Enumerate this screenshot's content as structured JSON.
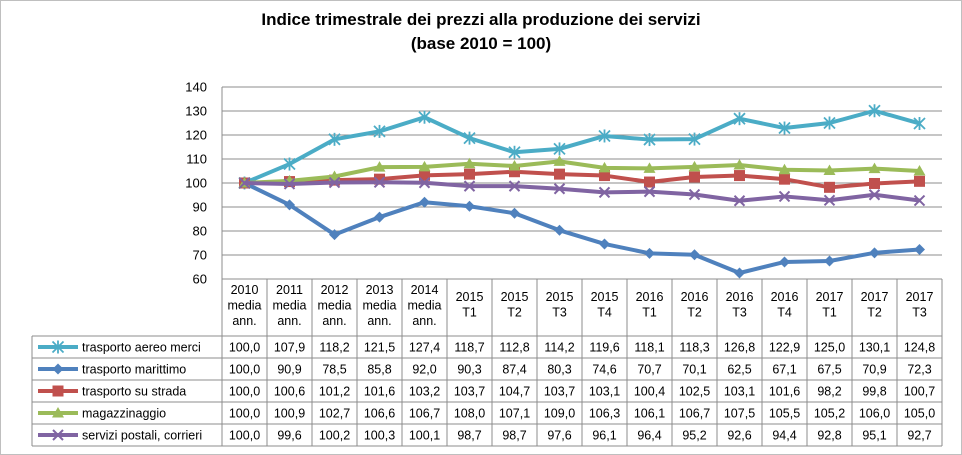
{
  "chart_data": {
    "type": "line",
    "title": "Indice trimestrale dei prezzi alla produzione dei servizi",
    "subtitle": "(base 2010 = 100)",
    "xlabel": "",
    "ylabel": "",
    "ylim": [
      60,
      140
    ],
    "yticks": [
      "60",
      "70",
      "80",
      "90",
      "100",
      "110",
      "120",
      "130",
      "140"
    ],
    "grid": true,
    "legend": "table-bottom",
    "categories": [
      [
        "2010",
        "media",
        "ann."
      ],
      [
        "2011",
        "media",
        "ann."
      ],
      [
        "2012",
        "media",
        "ann."
      ],
      [
        "2013",
        "media",
        "ann."
      ],
      [
        "2014",
        "media",
        "ann."
      ],
      [
        "2015",
        "T1"
      ],
      [
        "2015",
        "T2"
      ],
      [
        "2015",
        "T3"
      ],
      [
        "2015",
        "T4"
      ],
      [
        "2016",
        "T1"
      ],
      [
        "2016",
        "T2"
      ],
      [
        "2016",
        "T3"
      ],
      [
        "2016",
        "T4"
      ],
      [
        "2017",
        "T1"
      ],
      [
        "2017",
        "T2"
      ],
      [
        "2017",
        "T3"
      ]
    ],
    "series": [
      {
        "name": "trasporto aereo merci",
        "color": "#4bacc6",
        "marker": "star",
        "values": [
          100.0,
          107.9,
          118.2,
          121.5,
          127.4,
          118.7,
          112.8,
          114.2,
          119.6,
          118.1,
          118.3,
          126.8,
          122.9,
          125.0,
          130.1,
          124.8
        ],
        "labels": [
          "100,0",
          "107,9",
          "118,2",
          "121,5",
          "127,4",
          "118,7",
          "112,8",
          "114,2",
          "119,6",
          "118,1",
          "118,3",
          "126,8",
          "122,9",
          "125,0",
          "130,1",
          "124,8"
        ]
      },
      {
        "name": "trasporto marittimo",
        "color": "#4f81bd",
        "marker": "diamond",
        "values": [
          100.0,
          90.9,
          78.5,
          85.8,
          92.0,
          90.3,
          87.4,
          80.3,
          74.6,
          70.7,
          70.1,
          62.5,
          67.1,
          67.5,
          70.9,
          72.3
        ],
        "labels": [
          "100,0",
          "90,9",
          "78,5",
          "85,8",
          "92,0",
          "90,3",
          "87,4",
          "80,3",
          "74,6",
          "70,7",
          "70,1",
          "62,5",
          "67,1",
          "67,5",
          "70,9",
          "72,3"
        ]
      },
      {
        "name": "trasporto su strada",
        "color": "#c0504d",
        "marker": "square",
        "values": [
          100.0,
          100.6,
          101.2,
          101.6,
          103.2,
          103.7,
          104.7,
          103.7,
          103.1,
          100.4,
          102.5,
          103.1,
          101.6,
          98.2,
          99.8,
          100.7
        ],
        "labels": [
          "100,0",
          "100,6",
          "101,2",
          "101,6",
          "103,2",
          "103,7",
          "104,7",
          "103,7",
          "103,1",
          "100,4",
          "102,5",
          "103,1",
          "101,6",
          "98,2",
          "99,8",
          "100,7"
        ]
      },
      {
        "name": "magazzinaggio",
        "color": "#9bbb59",
        "marker": "triangle",
        "values": [
          100.0,
          100.9,
          102.7,
          106.6,
          106.7,
          108.0,
          107.1,
          109.0,
          106.3,
          106.1,
          106.7,
          107.5,
          105.5,
          105.2,
          106.0,
          105.0
        ],
        "labels": [
          "100,0",
          "100,9",
          "102,7",
          "106,6",
          "106,7",
          "108,0",
          "107,1",
          "109,0",
          "106,3",
          "106,1",
          "106,7",
          "107,5",
          "105,5",
          "105,2",
          "106,0",
          "105,0"
        ]
      },
      {
        "name": "servizi postali, corrieri",
        "color": "#8064a2",
        "marker": "x",
        "values": [
          100.0,
          99.6,
          100.2,
          100.3,
          100.1,
          98.7,
          98.7,
          97.6,
          96.1,
          96.4,
          95.2,
          92.6,
          94.4,
          92.8,
          95.1,
          92.7
        ],
        "labels": [
          "100,0",
          "99,6",
          "100,2",
          "100,3",
          "100,1",
          "98,7",
          "98,7",
          "97,6",
          "96,1",
          "96,4",
          "95,2",
          "92,6",
          "94,4",
          "92,8",
          "95,1",
          "92,7"
        ]
      }
    ]
  }
}
